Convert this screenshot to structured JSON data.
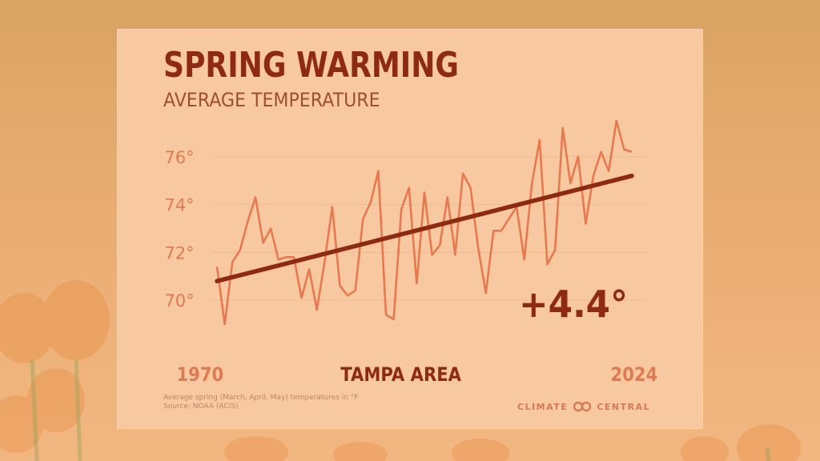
{
  "title": "SPRING WARMING",
  "subtitle": "AVERAGE TEMPERATURE",
  "region": "TAMPA AREA",
  "change_label": "+4.4°",
  "footnote": {
    "line1": "Average spring (March, April, May) temperatures in °F",
    "line2": "Source: NOAA (ACIS)"
  },
  "brand": {
    "left": "CLIMATE",
    "right": "CENTRAL",
    "icon": "linked-circles-logo-icon"
  },
  "colors": {
    "background": "#e9ad72",
    "card": "#f8c9a0",
    "title": "#8e2a12",
    "series": "#e8784e",
    "trend": "#8e2a12",
    "tick": "#e07a52",
    "gridline": "#f3b794"
  },
  "chart_data": {
    "type": "line",
    "title": "SPRING WARMING",
    "subtitle": "AVERAGE TEMPERATURE",
    "x": [
      1970,
      1971,
      1972,
      1973,
      1974,
      1975,
      1976,
      1977,
      1978,
      1979,
      1980,
      1981,
      1982,
      1983,
      1984,
      1985,
      1986,
      1987,
      1988,
      1989,
      1990,
      1991,
      1992,
      1993,
      1994,
      1995,
      1996,
      1997,
      1998,
      1999,
      2000,
      2001,
      2002,
      2003,
      2004,
      2005,
      2006,
      2007,
      2008,
      2009,
      2010,
      2011,
      2012,
      2013,
      2014,
      2015,
      2016,
      2017,
      2018,
      2019,
      2020,
      2021,
      2022,
      2023,
      2024
    ],
    "x_tick_labels": [
      "1970",
      "2024"
    ],
    "xlim": [
      1970,
      2024
    ],
    "series": [
      {
        "values": [
          71.4,
          69.0,
          71.6,
          72.1,
          73.3,
          74.3,
          72.4,
          73.0,
          71.7,
          71.8,
          71.8,
          70.1,
          71.3,
          69.6,
          71.6,
          73.9,
          70.6,
          70.2,
          70.4,
          73.4,
          74.1,
          75.4,
          69.4,
          69.2,
          73.8,
          74.7,
          70.7,
          74.5,
          71.9,
          72.3,
          74.3,
          71.9,
          75.3,
          74.7,
          72.2,
          70.3,
          72.9,
          72.9,
          73.4,
          73.9,
          71.7,
          74.9,
          76.7,
          71.5,
          72.1,
          77.2,
          74.9,
          76.0,
          73.2,
          75.2,
          76.2,
          75.4,
          77.5,
          76.3,
          76.2
        ]
      }
    ],
    "trendline": {
      "start": [
        1970,
        70.8
      ],
      "end": [
        2024,
        75.2
      ]
    },
    "change_annotation": "+4.4°",
    "yticks": [
      70,
      72,
      74,
      76
    ],
    "ytick_labels": [
      "70°",
      "72°",
      "74°",
      "76°"
    ],
    "ylim": [
      68.8,
      78
    ],
    "xlabel": "TAMPA AREA",
    "ylabel": "",
    "grid": true,
    "legend": "none"
  }
}
